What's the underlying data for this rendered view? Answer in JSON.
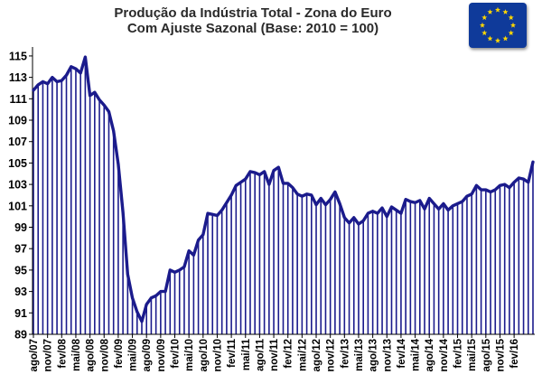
{
  "chart_data": {
    "type": "bar",
    "title": "Produção da Indústria Total - Zona do Euro",
    "subtitle": "Com Ajuste Sazonal (Base: 2010 = 100)",
    "start": "ago/07",
    "frequency": "monthly",
    "x_tick_labels": [
      "ago/07",
      "nov/07",
      "fev/08",
      "mai/08",
      "ago/08",
      "nov/08",
      "fev/09",
      "mai/09",
      "ago/09",
      "nov/09",
      "fev/10",
      "mai/10",
      "ago/10",
      "nov/10",
      "fev/11",
      "mai/11",
      "ago/11",
      "nov/11",
      "fev/12",
      "mai/12",
      "ago/12",
      "nov/12",
      "fev/13",
      "mai/13",
      "ago/13",
      "nov/13",
      "fev/14",
      "mai/14",
      "ago/14",
      "nov/14",
      "fev/15",
      "mai/15",
      "ago/15",
      "nov/15",
      "fev/16"
    ],
    "y_ticks": [
      89,
      91,
      93,
      95,
      97,
      99,
      101,
      103,
      105,
      107,
      109,
      111,
      113,
      115
    ],
    "ylim": [
      89,
      115.5
    ],
    "values": [
      111.8,
      112.3,
      112.6,
      112.4,
      113.0,
      112.6,
      112.7,
      113.2,
      114.0,
      113.8,
      113.4,
      114.9,
      111.3,
      111.6,
      110.9,
      110.4,
      109.8,
      108.0,
      104.9,
      100.4,
      94.6,
      92.4,
      91.1,
      90.2,
      91.8,
      92.4,
      92.6,
      93.0,
      93.0,
      95.0,
      94.8,
      95.0,
      95.3,
      96.8,
      96.4,
      97.8,
      98.3,
      100.3,
      100.2,
      100.1,
      100.6,
      101.3,
      102.0,
      102.9,
      103.2,
      103.5,
      104.2,
      104.1,
      103.9,
      104.2,
      103.0,
      104.3,
      104.6,
      103.1,
      103.1,
      102.7,
      102.1,
      101.9,
      102.1,
      102.0,
      101.1,
      101.7,
      101.1,
      101.6,
      102.3,
      101.2,
      99.9,
      99.4,
      99.9,
      99.3,
      99.6,
      100.3,
      100.5,
      100.3,
      100.8,
      100.0,
      100.9,
      100.6,
      100.3,
      101.6,
      101.4,
      101.3,
      101.5,
      100.7,
      101.7,
      101.2,
      100.7,
      101.2,
      100.6,
      101.0,
      101.2,
      101.4,
      101.9,
      102.1,
      102.9,
      102.5,
      102.5,
      102.3,
      102.5,
      102.9,
      103.0,
      102.7,
      103.2,
      103.6,
      103.5,
      103.2,
      105.1
    ],
    "colors": {
      "line": "#1b1b8c",
      "bars": "#1b1b8c",
      "axis": "#000000"
    },
    "grid": false,
    "legend": "none"
  },
  "flag": {
    "icon": "eu-flag-icon",
    "background": "#0f3a9a",
    "stars": "#ffd700"
  }
}
